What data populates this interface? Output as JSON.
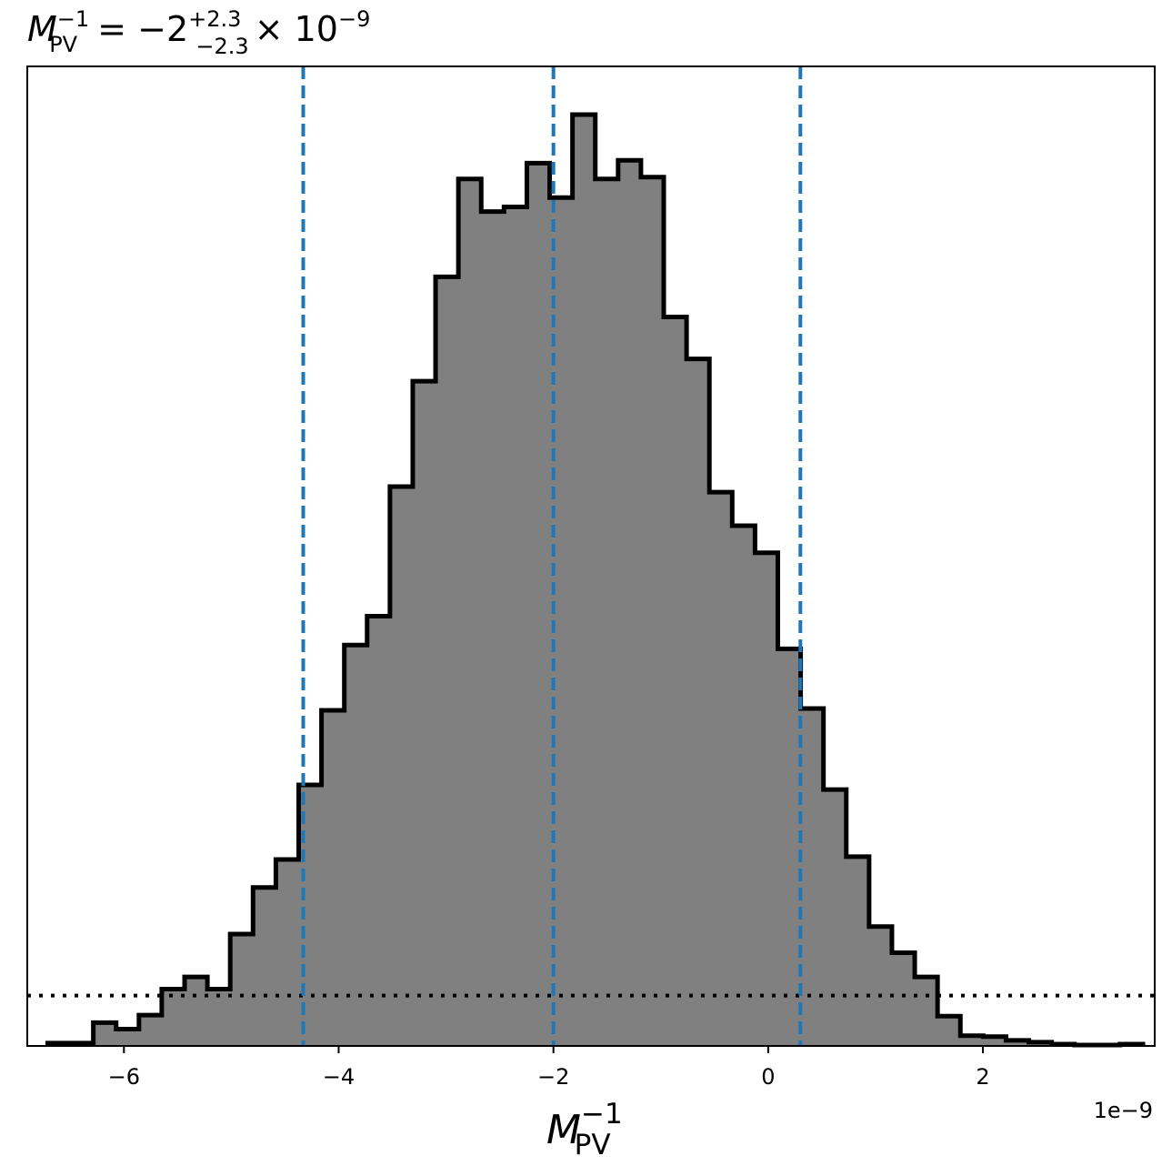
{
  "chart_data": {
    "type": "histogram",
    "title": {
      "symbol": "M",
      "symbol_sup": "−1",
      "symbol_sub": "PV",
      "equals": "=",
      "central": "−2",
      "upper_err": "+2.3",
      "lower_err": "−2.3",
      "multiplier": "× 10",
      "multiplier_exp": "−9"
    },
    "xlabel": {
      "symbol": "M",
      "sup": "−1",
      "sub": "PV"
    },
    "x_offset_label": "1e−9",
    "x_unit_scale": 1e-09,
    "xlim": [
      -6.9,
      3.6
    ],
    "ylim": [
      0,
      1
    ],
    "y_ticks_visible": false,
    "x_ticks": [
      {
        "value": -6,
        "label": "−6"
      },
      {
        "value": -4,
        "label": "−4"
      },
      {
        "value": -2,
        "label": "−2"
      },
      {
        "value": 0,
        "label": "0"
      },
      {
        "value": 2,
        "label": "2"
      }
    ],
    "bins": {
      "x_start": -6.71,
      "bin_width": 0.2125,
      "heights": [
        0.003,
        0.003,
        0.025,
        0.018,
        0.033,
        0.061,
        0.074,
        0.061,
        0.12,
        0.17,
        0.2,
        0.28,
        0.36,
        0.43,
        0.461,
        0.6,
        0.713,
        0.825,
        0.93,
        0.895,
        0.9,
        0.947,
        0.91,
        0.999,
        0.93,
        0.95,
        0.932,
        0.782,
        0.737,
        0.594,
        0.558,
        0.529,
        0.426,
        0.362,
        0.275,
        0.203,
        0.128,
        0.1,
        0.074,
        0.032,
        0.011,
        0.01,
        0.006,
        0.004,
        0.002,
        0.001,
        0.001,
        0.002
      ],
      "fill_color": "#808080",
      "edge_color": "#000000"
    },
    "vertical_lines": [
      {
        "x": -4.33,
        "role": "lower-bound",
        "style": "dashed",
        "color": "#1f77b4"
      },
      {
        "x": -2.0,
        "role": "median",
        "style": "dashed",
        "color": "#1f77b4"
      },
      {
        "x": 0.3,
        "role": "upper-bound",
        "style": "dashed",
        "color": "#1f77b4"
      }
    ],
    "horizontal_line": {
      "y": 0.054,
      "style": "dotted",
      "color": "#000000"
    },
    "grid": false,
    "legend": "none"
  }
}
